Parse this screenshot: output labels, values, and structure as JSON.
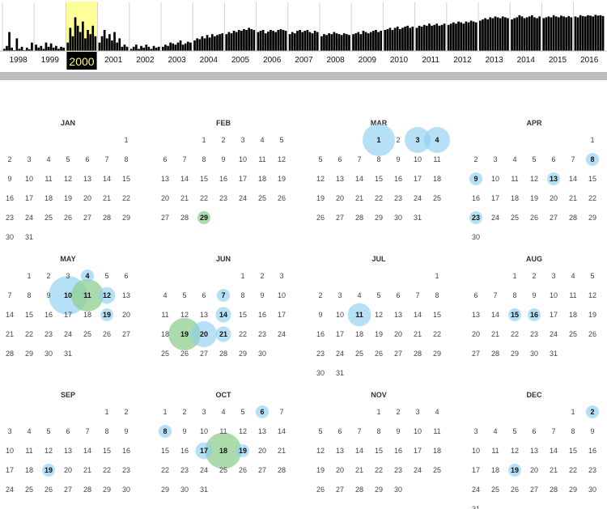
{
  "timeline": {
    "selected_year": "2000",
    "years": [
      "1998",
      "1999",
      "2000",
      "2001",
      "2002",
      "2003",
      "2004",
      "2005",
      "2006",
      "2007",
      "2008",
      "2009",
      "2010",
      "2011",
      "2012",
      "2013",
      "2014",
      "2015",
      "2016"
    ],
    "bar_levels": [
      [
        0.05,
        0.12,
        0.45,
        0.08,
        0.02,
        0.3,
        0.05,
        0.1,
        0.02,
        0.08,
        0.04,
        0.2
      ],
      [
        0.15,
        0.08,
        0.12,
        0.05,
        0.2,
        0.1,
        0.18,
        0.08,
        0.12,
        0.05,
        0.1,
        0.08
      ],
      [
        0.2,
        0.55,
        0.35,
        0.8,
        0.6,
        0.45,
        0.7,
        0.3,
        0.5,
        0.4,
        0.6,
        0.35
      ],
      [
        0.2,
        0.35,
        0.5,
        0.3,
        0.4,
        0.25,
        0.45,
        0.2,
        0.3,
        0.1,
        0.15,
        0.1
      ],
      [
        0.05,
        0.1,
        0.15,
        0.05,
        0.12,
        0.08,
        0.15,
        0.1,
        0.05,
        0.12,
        0.08,
        0.1
      ],
      [
        0.1,
        0.15,
        0.12,
        0.2,
        0.18,
        0.15,
        0.2,
        0.25,
        0.15,
        0.18,
        0.22,
        0.2
      ],
      [
        0.25,
        0.3,
        0.28,
        0.35,
        0.3,
        0.38,
        0.32,
        0.4,
        0.35,
        0.38,
        0.4,
        0.42
      ],
      [
        0.4,
        0.45,
        0.42,
        0.48,
        0.45,
        0.5,
        0.48,
        0.52,
        0.5,
        0.55,
        0.52,
        0.5
      ],
      [
        0.45,
        0.48,
        0.5,
        0.42,
        0.46,
        0.5,
        0.48,
        0.45,
        0.5,
        0.52,
        0.5,
        0.48
      ],
      [
        0.4,
        0.45,
        0.42,
        0.48,
        0.5,
        0.45,
        0.48,
        0.5,
        0.45,
        0.42,
        0.48,
        0.45
      ],
      [
        0.35,
        0.4,
        0.38,
        0.42,
        0.4,
        0.45,
        0.42,
        0.4,
        0.38,
        0.42,
        0.4,
        0.38
      ],
      [
        0.4,
        0.42,
        0.45,
        0.4,
        0.48,
        0.45,
        0.42,
        0.45,
        0.48,
        0.5,
        0.45,
        0.48
      ],
      [
        0.5,
        0.52,
        0.55,
        0.5,
        0.55,
        0.58,
        0.52,
        0.55,
        0.58,
        0.6,
        0.55,
        0.58
      ],
      [
        0.55,
        0.6,
        0.58,
        0.62,
        0.6,
        0.65,
        0.6,
        0.62,
        0.65,
        0.6,
        0.62,
        0.65
      ],
      [
        0.62,
        0.65,
        0.68,
        0.65,
        0.7,
        0.68,
        0.65,
        0.7,
        0.68,
        0.72,
        0.7,
        0.68
      ],
      [
        0.72,
        0.75,
        0.78,
        0.75,
        0.8,
        0.78,
        0.82,
        0.8,
        0.78,
        0.82,
        0.8,
        0.78
      ],
      [
        0.75,
        0.78,
        0.8,
        0.85,
        0.82,
        0.78,
        0.8,
        0.82,
        0.85,
        0.8,
        0.78,
        0.82
      ],
      [
        0.78,
        0.8,
        0.82,
        0.8,
        0.85,
        0.82,
        0.8,
        0.84,
        0.82,
        0.8,
        0.83,
        0.8
      ],
      [
        0.82,
        0.8,
        0.85,
        0.83,
        0.82,
        0.85,
        0.84,
        0.82,
        0.86,
        0.84,
        0.85,
        0.83
      ]
    ]
  },
  "calendar": {
    "year": 2000,
    "weekday_start": 0,
    "colors": {
      "blue": "#8fd0ef",
      "green": "#8fcf8f"
    },
    "months": [
      {
        "label": "JAN",
        "highlights": []
      },
      {
        "label": "FEB",
        "highlights": [
          {
            "day": 29,
            "color": "green",
            "size": 1
          }
        ]
      },
      {
        "label": "MAR",
        "highlights": [
          {
            "day": 1,
            "color": "blue",
            "size": 2.5
          },
          {
            "day": 3,
            "color": "blue",
            "size": 2
          },
          {
            "day": 4,
            "color": "blue",
            "size": 2
          }
        ]
      },
      {
        "label": "APR",
        "highlights": [
          {
            "day": 8,
            "color": "blue",
            "size": 1
          },
          {
            "day": 9,
            "color": "blue",
            "size": 1
          },
          {
            "day": 13,
            "color": "blue",
            "size": 1
          },
          {
            "day": 23,
            "color": "blue",
            "size": 1
          }
        ]
      },
      {
        "label": "MAY",
        "highlights": [
          {
            "day": 4,
            "color": "blue",
            "size": 1
          },
          {
            "day": 10,
            "color": "blue",
            "size": 3
          },
          {
            "day": 11,
            "color": "green",
            "size": 2.5
          },
          {
            "day": 12,
            "color": "blue",
            "size": 1.3
          },
          {
            "day": 19,
            "color": "blue",
            "size": 1
          }
        ]
      },
      {
        "label": "JUN",
        "highlights": [
          {
            "day": 7,
            "color": "blue",
            "size": 1
          },
          {
            "day": 14,
            "color": "blue",
            "size": 1.2
          },
          {
            "day": 19,
            "color": "green",
            "size": 2.5
          },
          {
            "day": 20,
            "color": "blue",
            "size": 2
          },
          {
            "day": 21,
            "color": "blue",
            "size": 1.2
          }
        ]
      },
      {
        "label": "JUL",
        "highlights": [
          {
            "day": 11,
            "color": "blue",
            "size": 1.8
          }
        ]
      },
      {
        "label": "AUG",
        "highlights": [
          {
            "day": 15,
            "color": "blue",
            "size": 1
          },
          {
            "day": 16,
            "color": "blue",
            "size": 1
          }
        ]
      },
      {
        "label": "SEP",
        "highlights": [
          {
            "day": 19,
            "color": "blue",
            "size": 1
          }
        ]
      },
      {
        "label": "OCT",
        "highlights": [
          {
            "day": 6,
            "color": "blue",
            "size": 1
          },
          {
            "day": 8,
            "color": "blue",
            "size": 1
          },
          {
            "day": 17,
            "color": "blue",
            "size": 1.3
          },
          {
            "day": 18,
            "color": "green",
            "size": 2.8
          },
          {
            "day": 19,
            "color": "blue",
            "size": 1
          }
        ]
      },
      {
        "label": "NOV",
        "highlights": []
      },
      {
        "label": "DEC",
        "highlights": [
          {
            "day": 2,
            "color": "blue",
            "size": 1
          },
          {
            "day": 19,
            "color": "blue",
            "size": 1
          }
        ]
      }
    ]
  }
}
